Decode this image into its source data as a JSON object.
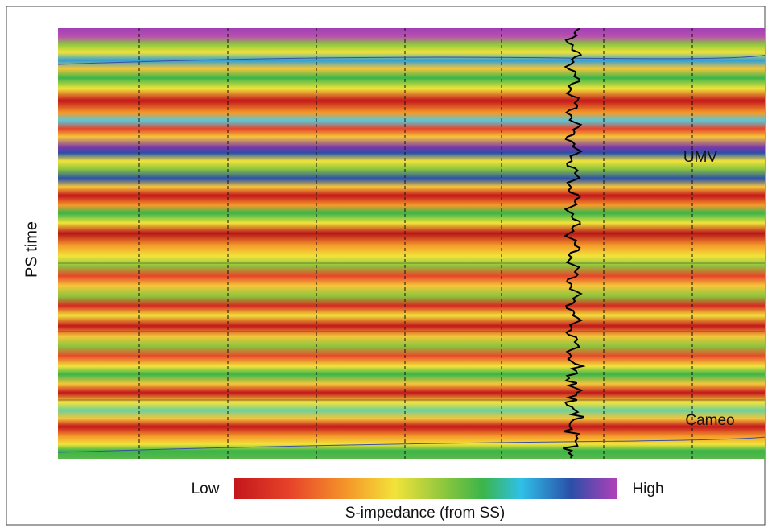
{
  "figure": {
    "y_axis_label": "PS time",
    "annotations": [
      "UMV",
      "Cameo"
    ],
    "colorbar": {
      "low": "Low",
      "high": "High",
      "title": "S-impedance (from SS)"
    }
  }
}
